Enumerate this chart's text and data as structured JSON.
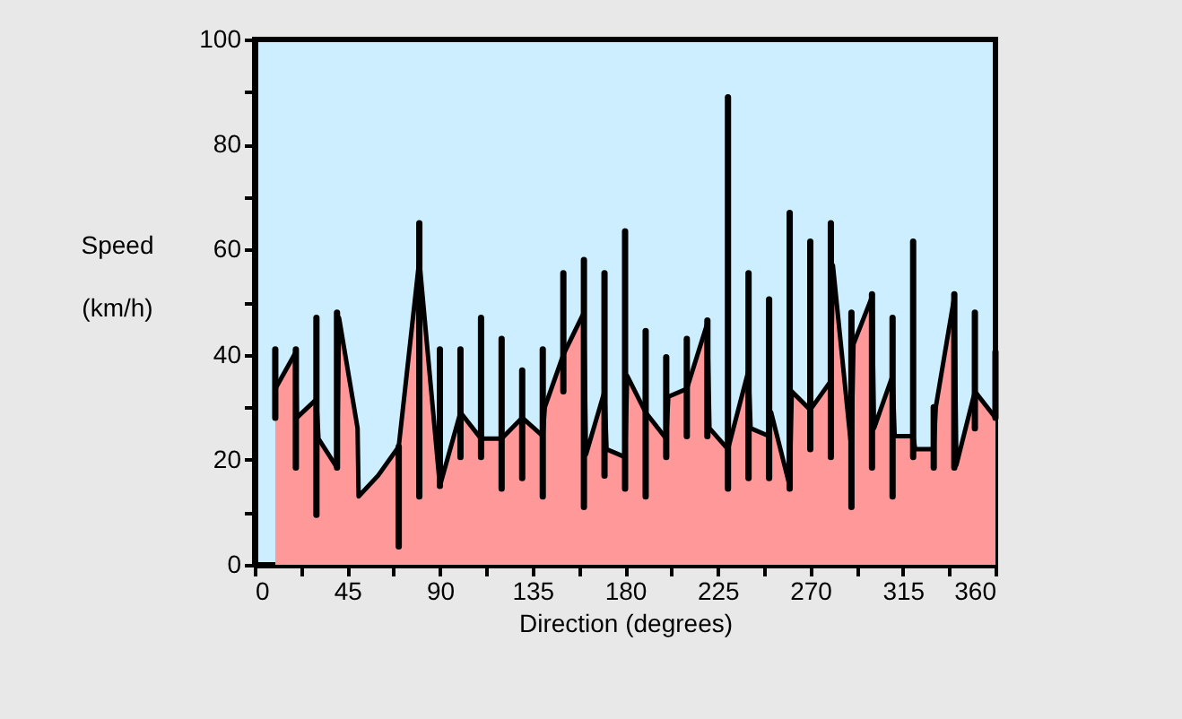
{
  "chart_data": {
    "type": "area",
    "xlabel": "Direction (degrees)",
    "ylabel": "Speed\n(km/h)",
    "xlim": [
      0,
      360
    ],
    "ylim": [
      0,
      100
    ],
    "xticks": [
      0,
      {
        "value": 22.5,
        "label": null
      },
      45,
      {
        "value": 67.5,
        "label": null
      },
      90,
      {
        "value": 112.5,
        "label": null
      },
      135,
      {
        "value": 157.5,
        "label": null
      },
      180,
      {
        "value": 202.5,
        "label": null
      },
      225,
      {
        "value": 247.5,
        "label": null
      },
      270,
      {
        "value": 292.5,
        "label": null
      },
      315,
      {
        "value": 337.5,
        "label": null
      },
      360
    ],
    "yticks": [
      0,
      {
        "value": 10,
        "label": null
      },
      20,
      {
        "value": 30,
        "label": null
      },
      40,
      {
        "value": 50,
        "label": null
      },
      60,
      {
        "value": 70,
        "label": null
      },
      80,
      {
        "value": 90,
        "label": null
      },
      100
    ],
    "grid": false,
    "series": [
      {
        "color": "#ff9999",
        "x": [
          10,
          20,
          20.5,
          30,
          31,
          40,
          41,
          50,
          50.5,
          60,
          70,
          80,
          90,
          100,
          110,
          120,
          130,
          140,
          141,
          150,
          160,
          161,
          170,
          171,
          180,
          181,
          190,
          200,
          201,
          210,
          220,
          221,
          230,
          240,
          241,
          250,
          251,
          260,
          261,
          270,
          280,
          281,
          290,
          291,
          300,
          301,
          310,
          311,
          320,
          321,
          330,
          331,
          340,
          341,
          350,
          360
        ],
        "values": [
          33.5,
          40.5,
          28,
          31.5,
          24,
          18.5,
          47,
          26,
          13,
          17,
          22.5,
          58,
          15,
          29,
          24,
          24,
          28,
          24.5,
          30,
          40,
          48,
          21,
          33,
          22,
          20.5,
          36,
          29,
          24,
          32,
          33.5,
          46,
          26,
          22,
          37,
          26,
          24.5,
          29,
          15,
          33,
          29.5,
          35,
          57,
          22,
          42,
          51,
          26,
          36,
          24.5,
          24.5,
          22,
          22,
          30,
          51,
          19,
          33,
          28
        ]
      },
      {
        "type": "bar",
        "color": "#000000",
        "x": [
          10,
          20,
          30,
          40,
          70,
          80,
          90,
          100,
          110,
          120,
          130,
          140,
          150,
          160,
          170,
          180,
          190,
          200,
          210,
          220,
          230,
          240,
          250,
          260,
          270,
          280,
          290,
          300,
          310,
          320,
          330,
          340,
          350,
          360
        ],
        "base": [
          28,
          18.5,
          9.5,
          18.5,
          3.5,
          13,
          15,
          20.5,
          20.5,
          14.5,
          16.5,
          13,
          33,
          11,
          17,
          14.5,
          13,
          20.5,
          24.5,
          24.5,
          14.5,
          16.5,
          16.5,
          14.5,
          22,
          20.5,
          11,
          18.5,
          13,
          20.5,
          18.5,
          18.5,
          26,
          28
        ],
        "values": [
          13,
          22.5,
          37.5,
          29.5,
          19,
          52,
          26,
          20.5,
          26.5,
          28.5,
          20.5,
          28,
          22.5,
          47,
          38.5,
          49,
          31.5,
          19,
          18.5,
          22,
          74.5,
          39,
          34,
          52.5,
          39.5,
          44.5,
          37,
          33,
          34,
          41,
          11.5,
          33,
          22,
          12.5
        ]
      }
    ]
  }
}
